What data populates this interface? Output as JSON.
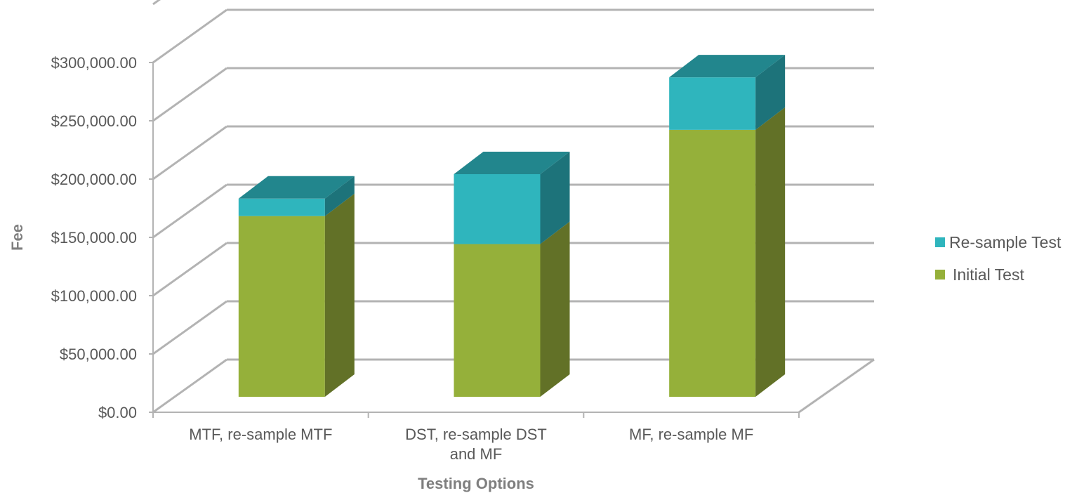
{
  "chart_data": {
    "type": "bar",
    "stacked": true,
    "three_d": true,
    "categories": [
      "MTF, re-sample MTF",
      "DST, re-sample DST and MF",
      "MF, re-sample MF"
    ],
    "category_lines": [
      [
        "MTF, re-sample MTF"
      ],
      [
        "DST, re-sample DST",
        "and MF"
      ],
      [
        "MF, re-sample MF"
      ]
    ],
    "series": [
      {
        "name": "Initial Test",
        "values": [
          155000,
          131000,
          229000
        ],
        "color": "#95b03a",
        "side_color": "#627127"
      },
      {
        "name": "Re-sample Test",
        "values": [
          15000,
          60000,
          45000
        ],
        "color": "#2fb5bd",
        "side_color": "#1d737a",
        "top_color": "#22868d"
      }
    ],
    "xlabel": "Testing Options",
    "ylabel": "Fee",
    "ylim": [
      0,
      300000
    ],
    "ytick_values": [
      0,
      50000,
      100000,
      150000,
      200000,
      250000,
      300000
    ],
    "ytick_labels": [
      "$0.00",
      "$50,000.00",
      "$100,000.00",
      "$150,000.00",
      "$200,000.00",
      "$250,000.00",
      "$300,000.00"
    ],
    "grid": true,
    "legend": {
      "position": "right",
      "order": [
        "Re-sample Test",
        "Initial Test"
      ]
    },
    "gridline_color": "#b3b3b3"
  }
}
